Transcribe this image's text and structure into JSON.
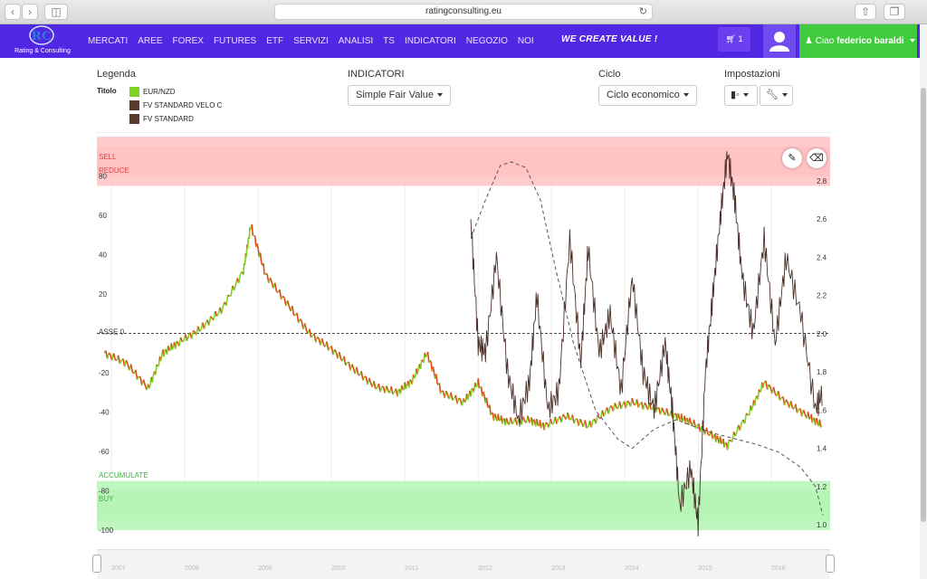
{
  "browser": {
    "url": "ratingconsulting.eu"
  },
  "nav": {
    "logo_text": "Rating & Consulting",
    "menu": [
      "MERCATI",
      "AREE",
      "FOREX",
      "FUTURES",
      "ETF",
      "SERVIZI",
      "ANALISI",
      "TS",
      "INDICATORI",
      "NEGOZIO",
      "NOI"
    ],
    "slogan": "WE CREATE VALUE !",
    "cart_count": "1",
    "greeting": "Ciao",
    "user_name": "federico baraldi"
  },
  "controls": {
    "legend_label": "Legenda",
    "legend_title": "Titolo",
    "legend": [
      {
        "name": "EUR/NZD",
        "color": "#7ed321"
      },
      {
        "name": "FV STANDARD VELO C",
        "color": "#5a3a2e"
      },
      {
        "name": "FV STANDARD",
        "color": "#5a3a2e"
      }
    ],
    "indicatori_label": "INDICATORI",
    "indicatori_value": "Simple Fair Value",
    "ciclo_label": "Ciclo",
    "ciclo_value": "Ciclo economico",
    "impostazioni_label": "Impostazioni"
  },
  "chart_data": {
    "type": "line",
    "zones": [
      {
        "name": "SELL",
        "from": 80,
        "to": 100,
        "color": "#ffc2c2",
        "text_color": "#e04040"
      },
      {
        "name": "REDUCE",
        "from": 75,
        "to": 95,
        "color": "#ffc2c2",
        "text_color": "#e04040"
      },
      {
        "name": "ASSE 0",
        "from": 0,
        "to": 0
      },
      {
        "name": "ACCUMULATE",
        "from": -75,
        "to": -95,
        "color": "#b5f5b5",
        "text_color": "#3bb53b"
      },
      {
        "name": "BUY",
        "from": -80,
        "to": -100,
        "color": "#b5f5b5",
        "text_color": "#3bb53b"
      }
    ],
    "left_axis": {
      "ticks": [
        80,
        60,
        40,
        20,
        -20,
        -40,
        -60,
        -80,
        -100
      ],
      "ylim": [
        -100,
        95
      ]
    },
    "right_axis": {
      "ticks": [
        "2.8",
        "2.6",
        "2.4",
        "2.2",
        "2.0",
        "1.8",
        "1.6",
        "1.4",
        "1.2",
        "1.0"
      ],
      "ylim": [
        1.0,
        2.8
      ]
    },
    "x_years": [
      "2007",
      "2008",
      "2009",
      "2010",
      "2011",
      "2012",
      "2013",
      "2014",
      "2015",
      "2016"
    ],
    "series": [
      {
        "name": "EUR/NZD",
        "axis": "left",
        "x": [
          2007.0,
          2007.3,
          2007.6,
          2007.8,
          2008.0,
          2008.3,
          2008.6,
          2008.9,
          2009.0,
          2009.2,
          2009.5,
          2009.8,
          2010.1,
          2010.4,
          2010.7,
          2011.0,
          2011.2,
          2011.4,
          2011.6,
          2011.9,
          2012.1,
          2012.3,
          2012.5,
          2012.8,
          2013.0,
          2013.3,
          2013.6,
          2013.9,
          2014.2,
          2014.5,
          2014.8,
          2015.0,
          2015.3,
          2015.5,
          2015.8,
          2016.0,
          2016.3,
          2016.6,
          2016.8
        ],
        "values": [
          -10,
          -15,
          -28,
          -10,
          -5,
          2,
          12,
          32,
          55,
          30,
          15,
          0,
          -8,
          -18,
          -27,
          -30,
          -24,
          -10,
          -30,
          -35,
          -25,
          -42,
          -45,
          -44,
          -47,
          -42,
          -47,
          -38,
          -35,
          -38,
          -42,
          -45,
          -52,
          -57,
          -40,
          -25,
          -35,
          -42,
          -47
        ]
      },
      {
        "name": "FV STANDARD VELO C",
        "axis": "right",
        "x": [
          2012.0,
          2012.1,
          2012.2,
          2012.35,
          2012.5,
          2012.65,
          2012.8,
          2012.9,
          2013.05,
          2013.2,
          2013.35,
          2013.5,
          2013.6,
          2013.75,
          2013.9,
          2014.05,
          2014.2,
          2014.35,
          2014.5,
          2014.65,
          2014.75,
          2014.85,
          2015.0,
          2015.1,
          2015.2,
          2015.3,
          2015.4,
          2015.5,
          2015.6,
          2015.7,
          2015.85,
          2016.0,
          2016.15,
          2016.3,
          2016.5,
          2016.7,
          2016.8
        ],
        "values": [
          2.6,
          1.95,
          1.9,
          2.4,
          1.8,
          1.55,
          1.75,
          2.2,
          1.6,
          1.7,
          2.5,
          1.85,
          2.45,
          1.9,
          2.1,
          1.7,
          2.3,
          1.8,
          1.6,
          1.95,
          1.6,
          1.1,
          1.3,
          1.0,
          1.8,
          2.2,
          2.6,
          2.95,
          2.7,
          2.3,
          2.0,
          2.5,
          1.95,
          2.4,
          2.1,
          1.6,
          1.7
        ]
      },
      {
        "name": "FV STANDARD",
        "axis": "right",
        "dashed": true,
        "x": [
          2012.0,
          2012.2,
          2012.4,
          2012.55,
          2012.75,
          2012.95,
          2013.15,
          2013.4,
          2013.7,
          2014.0,
          2014.2,
          2014.5,
          2014.8,
          2015.0,
          2015.3,
          2015.6,
          2015.9,
          2016.2,
          2016.5,
          2016.7,
          2016.8
        ],
        "values": [
          2.5,
          2.7,
          2.88,
          2.9,
          2.87,
          2.7,
          2.35,
          1.95,
          1.6,
          1.45,
          1.4,
          1.5,
          1.55,
          1.52,
          1.48,
          1.45,
          1.42,
          1.38,
          1.3,
          1.2,
          1.05
        ]
      }
    ]
  }
}
